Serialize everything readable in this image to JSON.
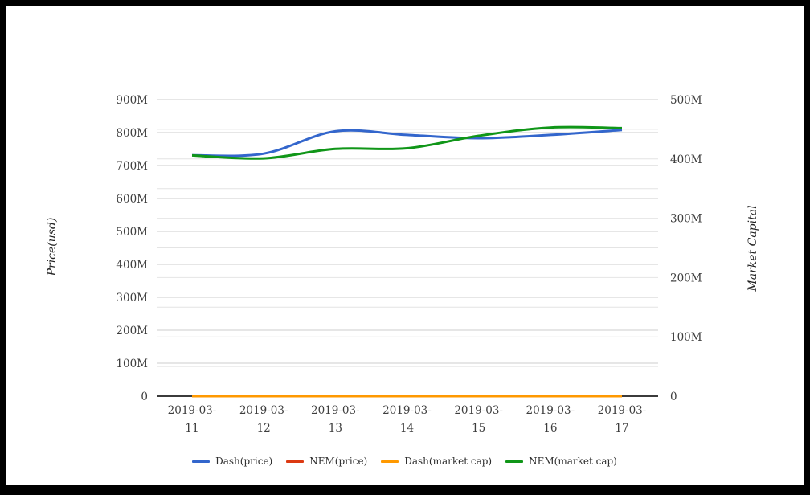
{
  "chart_data": {
    "type": "line",
    "title": "",
    "categories": [
      "2019-03-11",
      "2019-03-12",
      "2019-03-13",
      "2019-03-14",
      "2019-03-15",
      "2019-03-16",
      "2019-03-17"
    ],
    "series": [
      {
        "name": "Dash(price)",
        "color": "#3366cc",
        "axis": "left",
        "values_millions": [
          731,
          736,
          804,
          793,
          783,
          793,
          808
        ]
      },
      {
        "name": "NEM(price)",
        "color": "#dc3912",
        "axis": "left",
        "values_millions": [
          0,
          0,
          0,
          0,
          0,
          0,
          0
        ]
      },
      {
        "name": "Dash(market cap)",
        "color": "#ff9900",
        "axis": "left",
        "values_millions": [
          0,
          0,
          0,
          0,
          0,
          0,
          0
        ]
      },
      {
        "name": "NEM(market cap)",
        "color": "#109618",
        "axis": "right",
        "values_millions": [
          406,
          401,
          417,
          418,
          439,
          453,
          452
        ]
      }
    ],
    "left_axis": {
      "label": "Price(usd)",
      "unit": "M",
      "range_millions": [
        0,
        900
      ],
      "tick_labels": [
        "0",
        "100M",
        "200M",
        "300M",
        "400M",
        "500M",
        "600M",
        "700M",
        "800M",
        "900M"
      ]
    },
    "right_axis": {
      "label": "Market Capital",
      "unit": "M",
      "range_millions": [
        0,
        500
      ],
      "tick_labels": [
        "0",
        "100M",
        "200M",
        "300M",
        "400M",
        "500M"
      ],
      "minor_grid_step_millions": 50
    },
    "legend_position": "bottom",
    "grid": true,
    "curve": "smooth"
  }
}
